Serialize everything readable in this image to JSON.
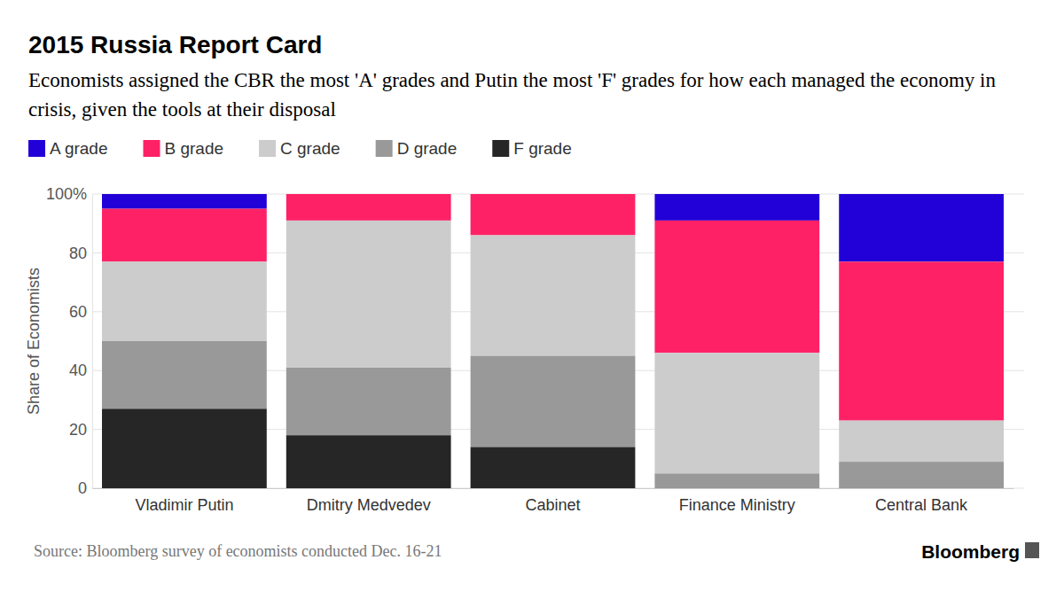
{
  "chart_data": {
    "type": "bar",
    "stacked": true,
    "title": "2015 Russia Report Card",
    "subtitle": "Economists assigned the CBR the most 'A' grades and Putin the most 'F' grades for how each managed the economy in crisis, given the tools at their disposal",
    "y_label": "Share of Economists",
    "source": "Source: Bloomberg survey of economists conducted Dec. 16-21",
    "credit": "Bloomberg",
    "categories": [
      "Vladimir Putin",
      "Dmitry Medvedev",
      "Cabinet",
      "Finance Ministry",
      "Central Bank"
    ],
    "series": [
      {
        "name": "A grade",
        "color": "#2200d8",
        "values": [
          5,
          0,
          0,
          9,
          23
        ]
      },
      {
        "name": "B grade",
        "color": "#ff2166",
        "values": [
          18,
          9,
          14,
          45,
          54
        ]
      },
      {
        "name": "C grade",
        "color": "#cccccc",
        "values": [
          27,
          50,
          41,
          41,
          14
        ]
      },
      {
        "name": "D grade",
        "color": "#999999",
        "values": [
          23,
          23,
          31,
          5,
          9
        ]
      },
      {
        "name": "F grade",
        "color": "#262626",
        "values": [
          27,
          18,
          14,
          0,
          0
        ]
      }
    ],
    "ylim": [
      0,
      100
    ],
    "yticks": [
      0,
      20,
      40,
      60,
      80,
      {
        "value": 100,
        "label": "100%"
      }
    ],
    "grid": true,
    "legend": "top-left"
  }
}
